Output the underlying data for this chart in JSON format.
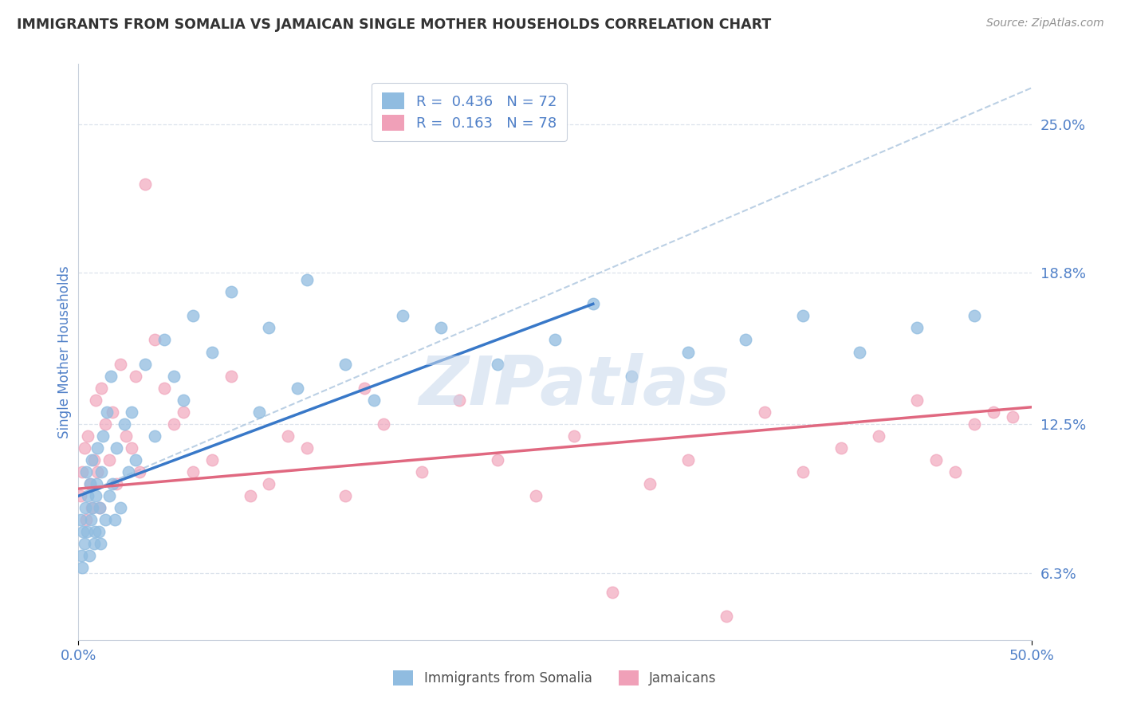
{
  "title": "IMMIGRANTS FROM SOMALIA VS JAMAICAN SINGLE MOTHER HOUSEHOLDS CORRELATION CHART",
  "source_text": "Source: ZipAtlas.com",
  "ylabel": "Single Mother Households",
  "xlim": [
    0.0,
    50.0
  ],
  "ylim": [
    3.5,
    27.5
  ],
  "yticks": [
    6.3,
    12.5,
    18.8,
    25.0
  ],
  "ytick_labels": [
    "6.3%",
    "12.5%",
    "18.8%",
    "25.0%"
  ],
  "xtick_labels": [
    "0.0%",
    "50.0%"
  ],
  "somalia_color": "#90bce0",
  "jamaican_color": "#f0a0b8",
  "somalia_line_color": "#3878c8",
  "jamaican_line_color": "#e06880",
  "watermark": "ZIPatlas",
  "watermark_color": "#c8d8ec",
  "background_color": "#ffffff",
  "grid_color": "#d4dce8",
  "title_color": "#333333",
  "tick_color": "#5080c8",
  "source_color": "#909090",
  "somalia_line_x0": 0,
  "somalia_line_x1": 27,
  "somalia_line_y0": 9.5,
  "somalia_line_y1": 17.5,
  "somalia_dash_x0": 0,
  "somalia_dash_x1": 50,
  "somalia_dash_y0": 9.5,
  "somalia_dash_y1": 26.5,
  "jamaican_line_x0": 0,
  "jamaican_line_x1": 50,
  "jamaican_line_y0": 9.8,
  "jamaican_line_y1": 13.2,
  "somalia_x": [
    0.1,
    0.15,
    0.2,
    0.25,
    0.3,
    0.35,
    0.4,
    0.45,
    0.5,
    0.55,
    0.6,
    0.65,
    0.7,
    0.75,
    0.8,
    0.85,
    0.9,
    0.95,
    1.0,
    1.05,
    1.1,
    1.15,
    1.2,
    1.3,
    1.4,
    1.5,
    1.6,
    1.7,
    1.8,
    1.9,
    2.0,
    2.2,
    2.4,
    2.6,
    2.8,
    3.0,
    3.5,
    4.0,
    4.5,
    5.0,
    5.5,
    6.0,
    7.0,
    8.0,
    9.5,
    10.0,
    11.5,
    12.0,
    14.0,
    15.5,
    17.0,
    19.0,
    22.0,
    25.0,
    27.0,
    29.0,
    32.0,
    35.0,
    38.0,
    41.0,
    44.0,
    47.0
  ],
  "somalia_y": [
    8.5,
    7.0,
    6.5,
    8.0,
    7.5,
    9.0,
    10.5,
    8.0,
    9.5,
    7.0,
    10.0,
    8.5,
    11.0,
    9.0,
    7.5,
    8.0,
    9.5,
    10.0,
    11.5,
    8.0,
    9.0,
    7.5,
    10.5,
    12.0,
    8.5,
    13.0,
    9.5,
    14.5,
    10.0,
    8.5,
    11.5,
    9.0,
    12.5,
    10.5,
    13.0,
    11.0,
    15.0,
    12.0,
    16.0,
    14.5,
    13.5,
    17.0,
    15.5,
    18.0,
    13.0,
    16.5,
    14.0,
    18.5,
    15.0,
    13.5,
    17.0,
    16.5,
    15.0,
    16.0,
    17.5,
    14.5,
    15.5,
    16.0,
    17.0,
    15.5,
    16.5,
    17.0
  ],
  "jamaican_x": [
    0.1,
    0.2,
    0.3,
    0.4,
    0.5,
    0.6,
    0.7,
    0.8,
    0.9,
    1.0,
    1.1,
    1.2,
    1.4,
    1.6,
    1.8,
    2.0,
    2.2,
    2.5,
    2.8,
    3.0,
    3.2,
    3.5,
    4.0,
    4.5,
    5.0,
    5.5,
    6.0,
    7.0,
    8.0,
    9.0,
    10.0,
    11.0,
    12.0,
    14.0,
    15.0,
    16.0,
    18.0,
    20.0,
    22.0,
    24.0,
    26.0,
    28.0,
    30.0,
    32.0,
    34.0,
    36.0,
    38.0,
    40.0,
    42.0,
    44.0,
    45.0,
    46.0,
    47.0,
    48.0,
    49.0
  ],
  "jamaican_y": [
    9.5,
    10.5,
    11.5,
    8.5,
    12.0,
    10.0,
    9.0,
    11.0,
    13.5,
    10.5,
    9.0,
    14.0,
    12.5,
    11.0,
    13.0,
    10.0,
    15.0,
    12.0,
    11.5,
    14.5,
    10.5,
    22.5,
    16.0,
    14.0,
    12.5,
    13.0,
    10.5,
    11.0,
    14.5,
    9.5,
    10.0,
    12.0,
    11.5,
    9.5,
    14.0,
    12.5,
    10.5,
    13.5,
    11.0,
    9.5,
    12.0,
    5.5,
    10.0,
    11.0,
    4.5,
    13.0,
    10.5,
    11.5,
    12.0,
    13.5,
    11.0,
    10.5,
    12.5,
    13.0,
    12.8
  ]
}
